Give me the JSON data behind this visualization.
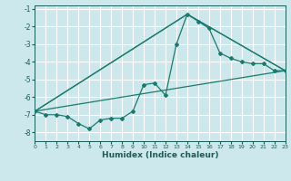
{
  "xlabel": "Humidex (Indice chaleur)",
  "bg_color": "#cce8ec",
  "grid_color": "#ffffff",
  "line_color": "#1a7a6e",
  "xlim": [
    0,
    23
  ],
  "ylim": [
    -8.5,
    -0.8
  ],
  "yticks": [
    -8,
    -7,
    -6,
    -5,
    -4,
    -3,
    -2,
    -1
  ],
  "xticks": [
    0,
    1,
    2,
    3,
    4,
    5,
    6,
    7,
    8,
    9,
    10,
    11,
    12,
    13,
    14,
    15,
    16,
    17,
    18,
    19,
    20,
    21,
    22,
    23
  ],
  "main_series": {
    "x": [
      0,
      1,
      2,
      3,
      4,
      5,
      6,
      7,
      8,
      9,
      10,
      11,
      12,
      13,
      14,
      15,
      16,
      17,
      18,
      19,
      20,
      21,
      22,
      23
    ],
    "y": [
      -6.8,
      -7.0,
      -7.0,
      -7.1,
      -7.5,
      -7.8,
      -7.3,
      -7.2,
      -7.2,
      -6.8,
      -5.3,
      -5.2,
      -5.9,
      -3.0,
      -1.3,
      -1.7,
      -2.1,
      -3.5,
      -3.8,
      -4.0,
      -4.1,
      -4.1,
      -4.5,
      -4.5
    ]
  },
  "line1": {
    "x": [
      0,
      23
    ],
    "y": [
      -6.8,
      -4.5
    ]
  },
  "line2": {
    "x": [
      0,
      14,
      23
    ],
    "y": [
      -6.8,
      -1.3,
      -4.5
    ]
  },
  "line3": {
    "x": [
      0,
      14,
      23
    ],
    "y": [
      -6.8,
      -1.3,
      -4.5
    ]
  }
}
